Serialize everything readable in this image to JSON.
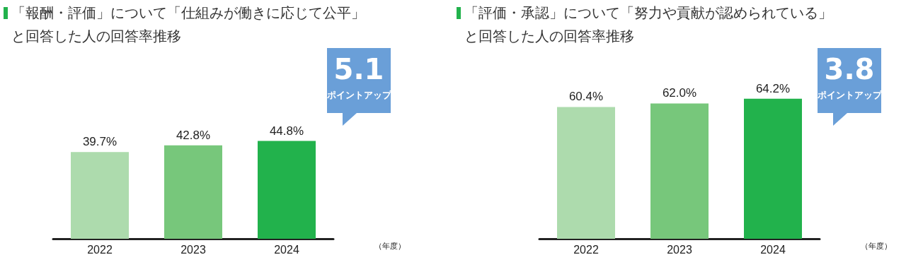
{
  "chart_data": [
    {
      "type": "bar",
      "title": "「報酬・評価」について「仕組みが働きに応じて公平」と回答した人の回答率推移",
      "xlabel": "（年度）",
      "categories": [
        "2022",
        "2023",
        "2024"
      ],
      "values": [
        39.7,
        42.8,
        44.8
      ],
      "colors": [
        "#addbad",
        "#77c77b",
        "#22b24c"
      ],
      "value_labels": [
        "39.7%",
        "42.8%",
        "44.8%"
      ],
      "tick_labels": "x",
      "grid": false,
      "annotations": [
        "5.1",
        "ポイントアップ"
      ]
    },
    {
      "type": "bar",
      "title": "「評価・承認」について「努力や貢献が認められている」と回答した人の回答率推移",
      "xlabel": "（年度）",
      "categories": [
        "2022",
        "2023",
        "2024"
      ],
      "values": [
        60.4,
        62.0,
        64.2
      ],
      "colors": [
        "#addbad",
        "#77c77b",
        "#22b24c"
      ],
      "value_labels": [
        "60.4%",
        "62.0%",
        "64.2%"
      ],
      "tick_labels": "x",
      "grid": false,
      "annotations": [
        "3.8",
        "ポイントアップ"
      ]
    }
  ]
}
